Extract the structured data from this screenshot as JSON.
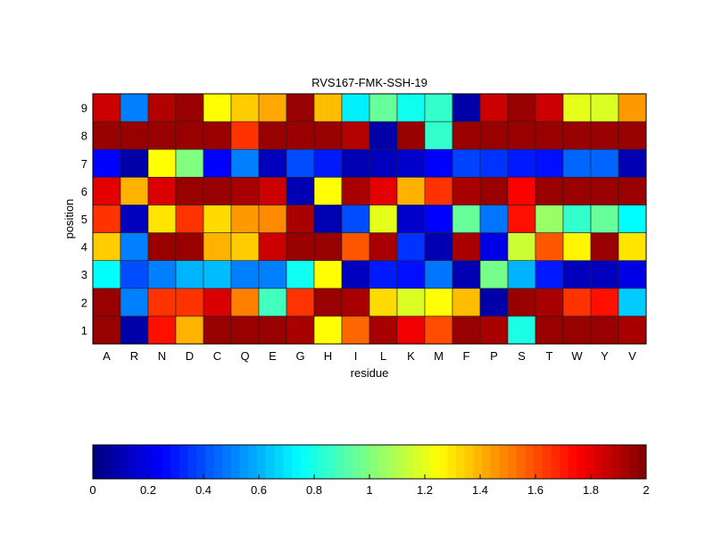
{
  "chart_data": {
    "type": "heatmap",
    "title": "RVS167-FMK-SSH-19",
    "xlabel": "residue",
    "ylabel": "position",
    "x_categories": [
      "A",
      "R",
      "N",
      "D",
      "C",
      "Q",
      "E",
      "G",
      "H",
      "I",
      "L",
      "K",
      "M",
      "F",
      "P",
      "S",
      "T",
      "W",
      "Y",
      "V"
    ],
    "y_categories": [
      "1",
      "2",
      "3",
      "4",
      "5",
      "6",
      "7",
      "8",
      "9"
    ],
    "colormap": "jet",
    "clim": [
      0,
      2
    ],
    "colorbar_ticks": [
      "0",
      "0.2",
      "0.4",
      "0.6",
      "0.8",
      "1",
      "1.2",
      "1.4",
      "1.6",
      "1.8",
      "2"
    ],
    "colorbar_placement": "bottom",
    "values": [
      [
        1.95,
        0.08,
        1.72,
        1.4,
        1.95,
        1.95,
        1.95,
        1.92,
        1.25,
        1.55,
        1.92,
        1.78,
        1.6,
        1.95,
        1.92,
        0.8,
        1.95,
        1.95,
        1.95,
        1.92
      ],
      [
        1.95,
        0.5,
        1.65,
        1.65,
        1.82,
        1.5,
        0.88,
        1.65,
        1.95,
        1.92,
        1.32,
        1.18,
        1.25,
        1.38,
        0.08,
        1.95,
        1.92,
        1.65,
        1.72,
        0.65
      ],
      [
        0.75,
        0.4,
        0.5,
        0.6,
        0.62,
        0.5,
        0.5,
        0.78,
        1.25,
        0.12,
        0.3,
        0.28,
        0.48,
        0.1,
        0.98,
        0.6,
        0.3,
        0.12,
        0.12,
        0.2
      ],
      [
        1.35,
        0.5,
        1.95,
        1.95,
        1.4,
        1.35,
        1.85,
        1.95,
        1.95,
        1.58,
        1.92,
        0.35,
        0.1,
        1.92,
        0.2,
        1.15,
        1.58,
        1.27,
        1.95,
        1.3
      ],
      [
        1.65,
        0.12,
        1.3,
        1.65,
        1.32,
        1.45,
        1.48,
        1.92,
        0.1,
        0.4,
        1.2,
        0.15,
        0.25,
        0.95,
        0.48,
        1.72,
        1.05,
        0.85,
        0.95,
        0.75
      ],
      [
        1.8,
        1.4,
        1.82,
        1.95,
        1.95,
        1.92,
        1.85,
        0.1,
        1.25,
        1.92,
        1.8,
        1.4,
        1.65,
        1.92,
        1.95,
        1.75,
        1.95,
        1.95,
        1.95,
        1.95
      ],
      [
        0.25,
        0.08,
        1.25,
        1.0,
        0.25,
        0.5,
        0.12,
        0.4,
        0.3,
        0.1,
        0.12,
        0.15,
        0.25,
        0.38,
        0.35,
        0.3,
        0.28,
        0.45,
        0.45,
        0.1
      ],
      [
        1.95,
        1.95,
        1.95,
        1.95,
        1.95,
        1.65,
        1.95,
        1.95,
        1.95,
        1.9,
        0.08,
        1.95,
        0.85,
        1.95,
        1.95,
        1.95,
        1.95,
        1.95,
        1.95,
        1.95
      ],
      [
        1.85,
        0.5,
        1.9,
        1.95,
        1.25,
        1.35,
        1.42,
        1.95,
        1.38,
        0.72,
        0.95,
        0.78,
        0.85,
        0.08,
        1.85,
        1.95,
        1.85,
        1.2,
        1.18,
        1.45
      ]
    ]
  }
}
